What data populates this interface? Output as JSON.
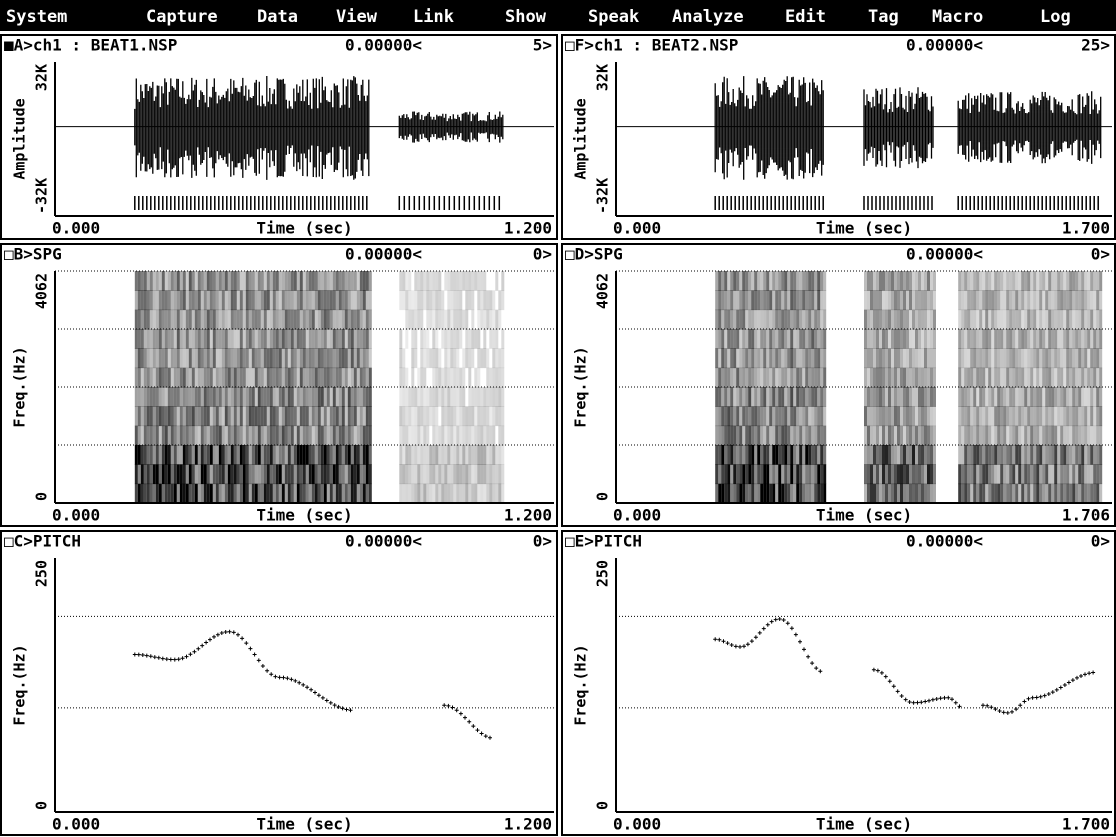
{
  "menu": [
    "System",
    "Capture",
    "Data",
    "View",
    "Link",
    "Show",
    "Speak",
    "Analyze",
    "Edit",
    "Tag",
    "Macro",
    "Log"
  ],
  "panels": [
    {
      "title": "■A>ch1 : BEAT1.NSP",
      "cursor": "0.00000<",
      "count": "5>",
      "y_label": "Amplitude",
      "y_top": "32K",
      "y_bottom": "-32K",
      "x_start": "0.000",
      "x_label": "Time (sec)",
      "x_end": "1.200"
    },
    {
      "title": "□F>ch1 : BEAT2.NSP",
      "cursor": "0.00000<",
      "count": "25>",
      "y_label": "Amplitude",
      "y_top": "32K",
      "y_bottom": "-32K",
      "x_start": "0.000",
      "x_label": "Time (sec)",
      "x_end": "1.700"
    },
    {
      "title": "□B>SPG",
      "cursor": "0.00000<",
      "count": "0>",
      "y_label": "Freq.(Hz)",
      "y_top": "4062",
      "y_bottom": "0",
      "x_start": "0.000",
      "x_label": "Time (sec)",
      "x_end": "1.200"
    },
    {
      "title": "□D>SPG",
      "cursor": "0.00000<",
      "count": "0>",
      "y_label": "Freq.(Hz)",
      "y_top": "4062",
      "y_bottom": "0",
      "x_start": "0.000",
      "x_label": "Time (sec)",
      "x_end": "1.706"
    },
    {
      "title": "□C>PITCH",
      "cursor": "0.00000<",
      "count": "0>",
      "y_label": "Freq.(Hz)",
      "y_top": "250",
      "y_bottom": "0",
      "x_start": "0.000",
      "x_label": "Time (sec)",
      "x_end": "1.200"
    },
    {
      "title": "□E>PITCH",
      "cursor": "0.00000<",
      "count": "0>",
      "y_label": "Freq.(Hz)",
      "y_top": "250",
      "y_bottom": "0",
      "x_start": "0.000",
      "x_label": "Time (sec)",
      "x_end": "1.700"
    }
  ]
}
